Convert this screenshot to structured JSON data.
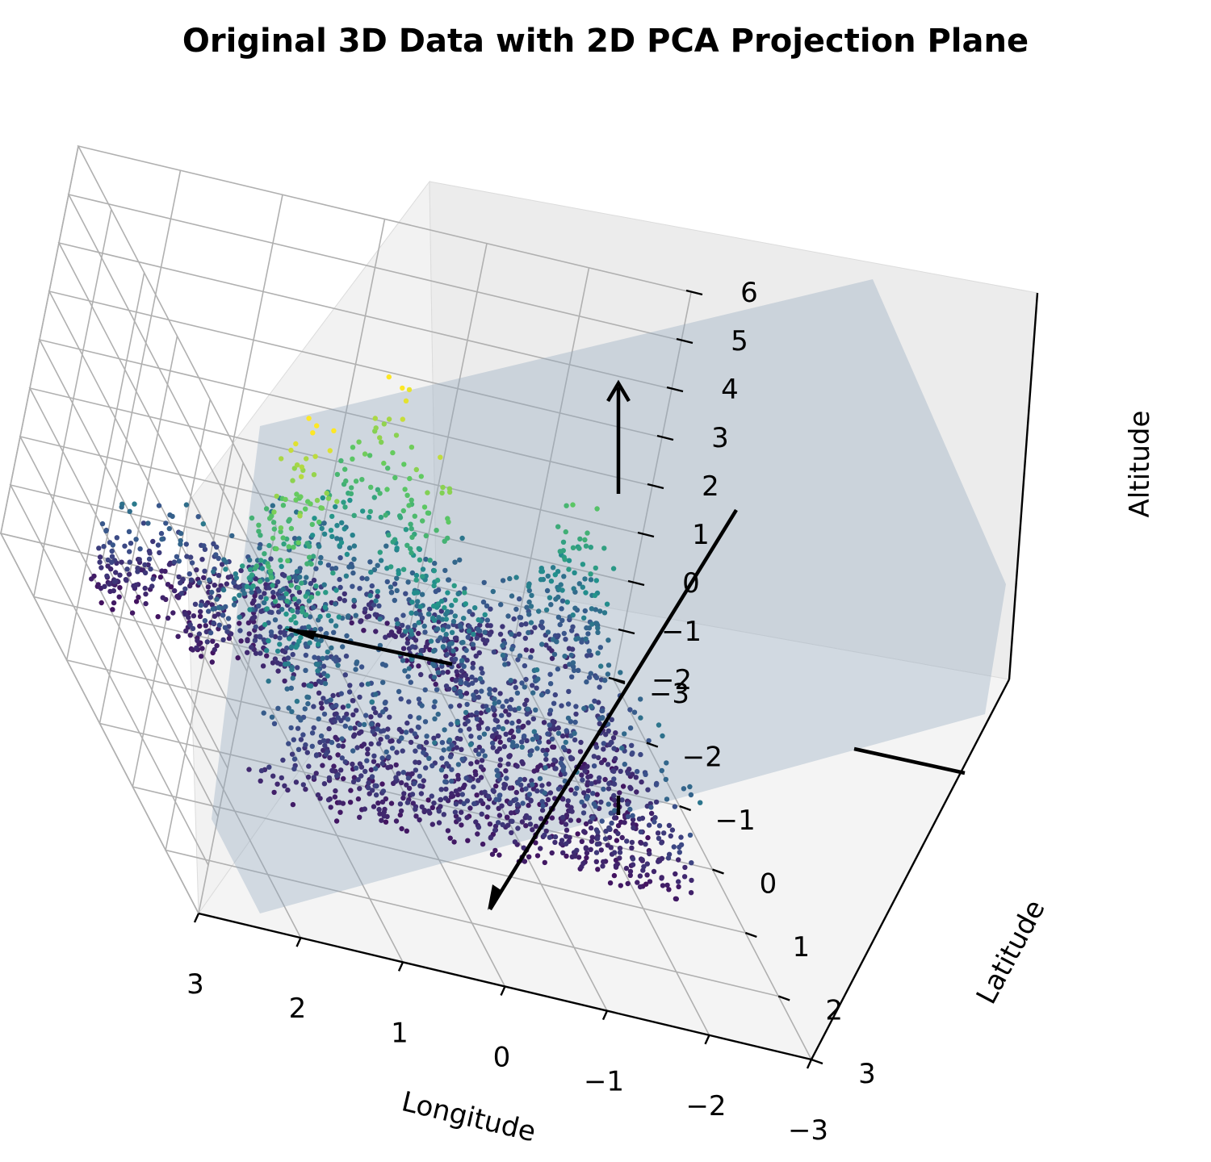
{
  "chart_data": {
    "type": "scatter",
    "projection": "3d",
    "title": "Original 3D Data with 2D PCA Projection Plane",
    "axes": {
      "x": {
        "label": "Longitude",
        "range": [
          -3,
          3
        ],
        "ticks": [
          "3",
          "2",
          "1",
          "0",
          "−1",
          "−2",
          "−3"
        ]
      },
      "y": {
        "label": "Latitude",
        "range": [
          -3,
          3
        ],
        "ticks": [
          "−3",
          "−2",
          "−1",
          "0",
          "1",
          "2",
          "3"
        ]
      },
      "z": {
        "label": "Altitude",
        "range": [
          -2,
          6
        ],
        "ticks": [
          "−2",
          "−1",
          "0",
          "1",
          "2",
          "3",
          "4",
          "5",
          "6"
        ]
      }
    },
    "grid": true,
    "colormap": "viridis",
    "color_by": "z",
    "colormap_stops": [
      "#440154",
      "#3b528b",
      "#21918c",
      "#5ec962",
      "#fde725"
    ],
    "projection_plane": {
      "color": "#8fa6bd",
      "opacity": 0.35
    },
    "principal_axes_color": "#000000",
    "approximate_peaks": [
      {
        "x": 1.4,
        "y": -0.4,
        "z": 4.2
      },
      {
        "x": 1.8,
        "y": 0.3,
        "z": 2.6
      },
      {
        "x": 0.2,
        "y": -1.6,
        "z": 3.7
      },
      {
        "x": -0.2,
        "y": -0.9,
        "z": 2.2
      },
      {
        "x": -1.9,
        "y": -1.8,
        "z": 1.8
      }
    ]
  }
}
